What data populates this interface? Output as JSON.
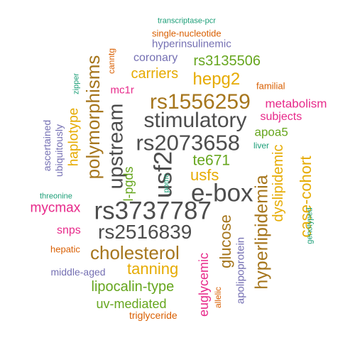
{
  "palette": {
    "dark_gray": "#4d4d4d",
    "brown": "#a6761d",
    "orange": "#d95f02",
    "gold": "#e6ab02",
    "green": "#66a61e",
    "teal": "#1b9e77",
    "purple": "#7570b3",
    "magenta": "#e7298a"
  },
  "words": [
    {
      "text": "transcriptase-pcr",
      "color": "teal"
    },
    {
      "text": "single-nucleotide",
      "color": "orange"
    },
    {
      "text": "hyperinsulinemic",
      "color": "purple"
    },
    {
      "text": "coronary",
      "color": "purple"
    },
    {
      "text": "rs3135506",
      "color": "green"
    },
    {
      "text": "canntg",
      "color": "orange"
    },
    {
      "text": "polymorphisms",
      "color": "brown"
    },
    {
      "text": "carriers",
      "color": "gold"
    },
    {
      "text": "hepg2",
      "color": "gold"
    },
    {
      "text": "zipper",
      "color": "teal"
    },
    {
      "text": "mc1r",
      "color": "magenta"
    },
    {
      "text": "familial",
      "color": "orange"
    },
    {
      "text": "rs1556259",
      "color": "brown"
    },
    {
      "text": "metabolism",
      "color": "magenta"
    },
    {
      "text": "stimulatory",
      "color": "dark_gray"
    },
    {
      "text": "subjects",
      "color": "magenta"
    },
    {
      "text": "haplotype",
      "color": "gold"
    },
    {
      "text": "ascertained",
      "color": "purple"
    },
    {
      "text": "ubiquitously",
      "color": "purple"
    },
    {
      "text": "upstream",
      "color": "dark_gray"
    },
    {
      "text": "apoa5",
      "color": "green"
    },
    {
      "text": "rs2073658",
      "color": "dark_gray"
    },
    {
      "text": "liver",
      "color": "teal"
    },
    {
      "text": "usf2",
      "color": "dark_gray"
    },
    {
      "text": "te671",
      "color": "green"
    },
    {
      "text": "dyslipidemic",
      "color": "gold"
    },
    {
      "text": "usfs",
      "color": "gold"
    },
    {
      "text": "l-pgds",
      "color": "green"
    },
    {
      "text": "pomc",
      "color": "teal"
    },
    {
      "text": "hyperlipidemia",
      "color": "brown"
    },
    {
      "text": "case-cohort",
      "color": "gold"
    },
    {
      "text": "e-box",
      "color": "dark_gray"
    },
    {
      "text": "threonine",
      "color": "teal"
    },
    {
      "text": "mycmax",
      "color": "magenta"
    },
    {
      "text": "rs3737787",
      "color": "dark_gray"
    },
    {
      "text": "genotyped",
      "color": "teal"
    },
    {
      "text": "glucose",
      "color": "brown"
    },
    {
      "text": "snps",
      "color": "magenta"
    },
    {
      "text": "rs2516839",
      "color": "dark_gray"
    },
    {
      "text": "apolipoprotein",
      "color": "purple"
    },
    {
      "text": "cholesterol",
      "color": "brown"
    },
    {
      "text": "euglycemic",
      "color": "magenta"
    },
    {
      "text": "hepatic",
      "color": "orange"
    },
    {
      "text": "tanning",
      "color": "gold"
    },
    {
      "text": "middle-aged",
      "color": "purple"
    },
    {
      "text": "allelic",
      "color": "orange"
    },
    {
      "text": "lipocalin-type",
      "color": "green"
    },
    {
      "text": "uv-mediated",
      "color": "green"
    },
    {
      "text": "triglyceride",
      "color": "orange"
    }
  ]
}
